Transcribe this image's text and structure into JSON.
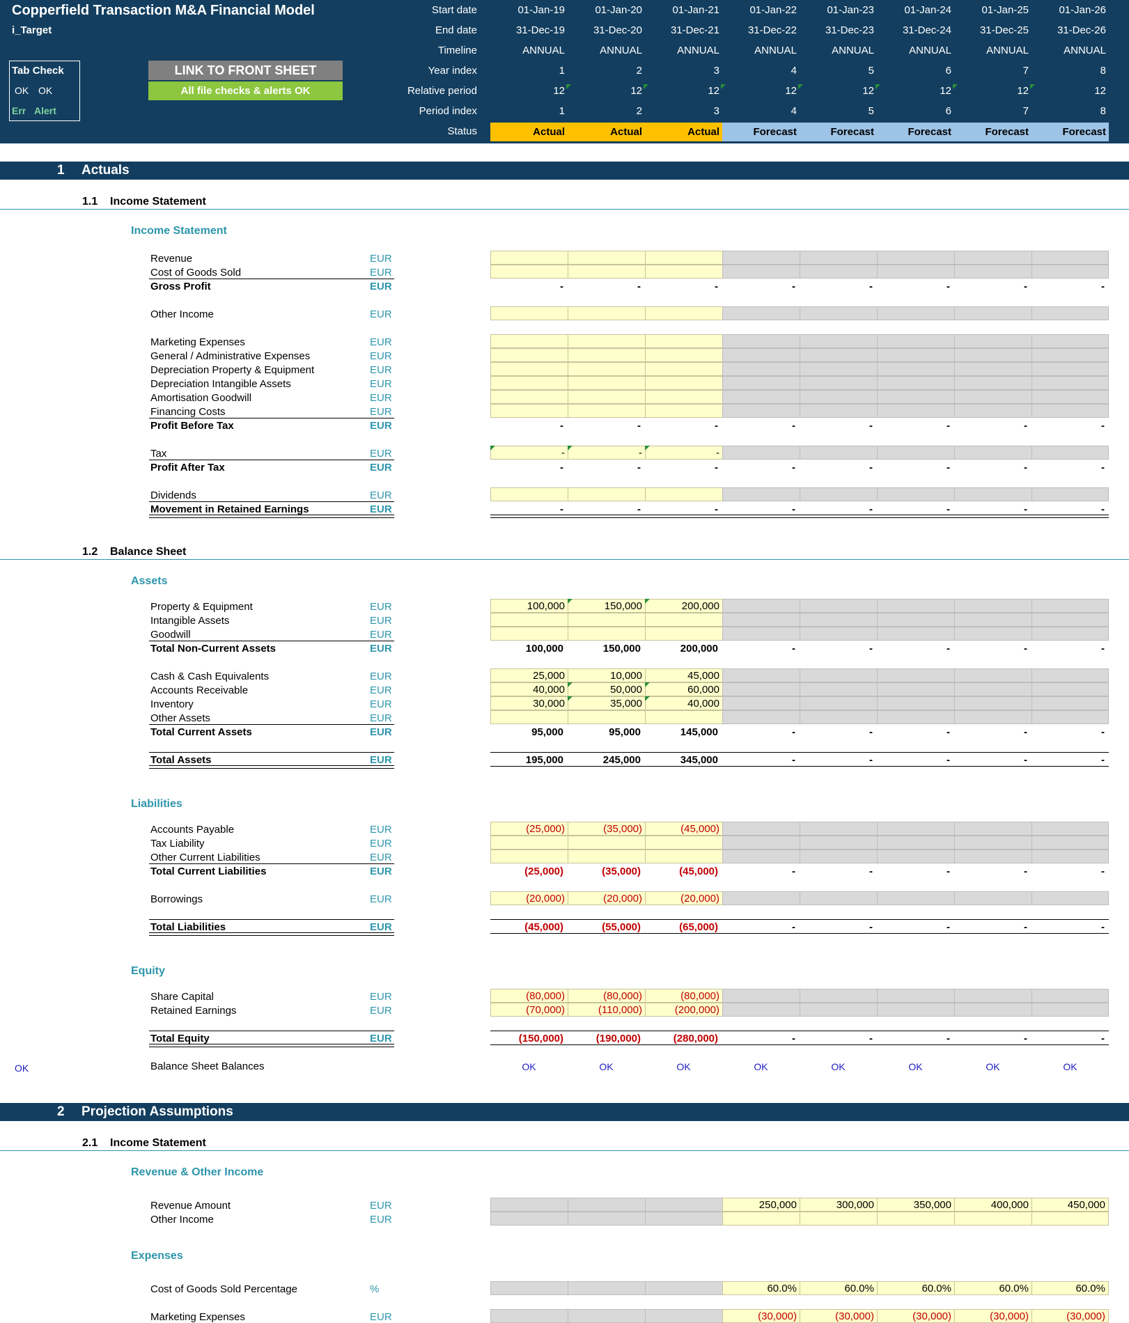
{
  "header": {
    "title": "Copperfield Transaction M&A Financial Model",
    "sheet_name": "i_Target",
    "tab_check": {
      "title": "Tab Check",
      "ok1": "OK",
      "ok2": "OK",
      "err": "Err",
      "alert": "Alert"
    },
    "link_button": "LINK TO FRONT SHEET",
    "checks_banner": "All file checks & alerts OK",
    "row_labels": [
      "Start date",
      "End date",
      "Timeline",
      "Year index",
      "Relative period",
      "Period index",
      "Status"
    ],
    "start_dates": [
      "01-Jan-19",
      "01-Jan-20",
      "01-Jan-21",
      "01-Jan-22",
      "01-Jan-23",
      "01-Jan-24",
      "01-Jan-25",
      "01-Jan-26"
    ],
    "end_dates": [
      "31-Dec-19",
      "31-Dec-20",
      "31-Dec-21",
      "31-Dec-22",
      "31-Dec-23",
      "31-Dec-24",
      "31-Dec-25",
      "31-Dec-26"
    ],
    "timeline": [
      "ANNUAL",
      "ANNUAL",
      "ANNUAL",
      "ANNUAL",
      "ANNUAL",
      "ANNUAL",
      "ANNUAL",
      "ANNUAL"
    ],
    "year_index": [
      "1",
      "2",
      "3",
      "4",
      "5",
      "6",
      "7",
      "8"
    ],
    "relative_period": [
      "12",
      "12",
      "12",
      "12",
      "12",
      "12",
      "12",
      "12"
    ],
    "period_index": [
      "1",
      "2",
      "3",
      "4",
      "5",
      "6",
      "7",
      "8"
    ],
    "status": [
      "Actual",
      "Actual",
      "Actual",
      "Forecast",
      "Forecast",
      "Forecast",
      "Forecast",
      "Forecast"
    ]
  },
  "colors": {
    "header_bg": "#133e5f",
    "actual": "#ffc000",
    "forecast": "#9dc3e6",
    "input": "#ffffcc",
    "disabled": "#d9d9d9",
    "teal": "#2e96ac",
    "ok_green": "#92d050",
    "link_grey": "#808080"
  },
  "sections": {
    "s1": {
      "num": "1",
      "title": "Actuals"
    },
    "s11": {
      "num": "1.1",
      "title": "Income Statement"
    },
    "s11_sub": "Income Statement",
    "s12": {
      "num": "1.2",
      "title": "Balance Sheet"
    },
    "assets": "Assets",
    "liabilities": "Liabilities",
    "equity": "Equity",
    "s2": {
      "num": "2",
      "title": "Projection Assumptions"
    },
    "s21": {
      "num": "2.1",
      "title": "Income Statement"
    },
    "rev_other": "Revenue & Other Income",
    "expenses": "Expenses"
  },
  "rows": [
    {
      "label": "Revenue",
      "unit": "EUR",
      "vals": [
        "",
        "",
        "",
        "",
        "",
        "",
        "",
        ""
      ]
    },
    {
      "label": "Cost of Goods Sold",
      "unit": "EUR",
      "vals": [
        "",
        "",
        "",
        "",
        "",
        "",
        "",
        ""
      ]
    },
    {
      "label": "Gross Profit",
      "unit": "EUR",
      "vals": [
        "-",
        "-",
        "-",
        "-",
        "-",
        "-",
        "-",
        "-"
      ]
    },
    {
      "label": "Other Income",
      "unit": "EUR",
      "vals": [
        "",
        "",
        "",
        "",
        "",
        "",
        "",
        ""
      ]
    },
    {
      "label": "Marketing Expenses",
      "unit": "EUR",
      "vals": [
        "",
        "",
        "",
        "",
        "",
        "",
        "",
        ""
      ]
    },
    {
      "label": "General / Administrative Expenses",
      "unit": "EUR",
      "vals": [
        "",
        "",
        "",
        "",
        "",
        "",
        "",
        ""
      ]
    },
    {
      "label": "Depreciation Property & Equipment",
      "unit": "EUR",
      "vals": [
        "",
        "",
        "",
        "",
        "",
        "",
        "",
        ""
      ]
    },
    {
      "label": "Depreciation Intangible Assets",
      "unit": "EUR",
      "vals": [
        "",
        "",
        "",
        "",
        "",
        "",
        "",
        ""
      ]
    },
    {
      "label": "Amortisation Goodwill",
      "unit": "EUR",
      "vals": [
        "",
        "",
        "",
        "",
        "",
        "",
        "",
        ""
      ]
    },
    {
      "label": "Financing Costs",
      "unit": "EUR",
      "vals": [
        "",
        "",
        "",
        "",
        "",
        "",
        "",
        ""
      ]
    },
    {
      "label": "Profit Before Tax",
      "unit": "EUR",
      "vals": [
        "-",
        "-",
        "-",
        "-",
        "-",
        "-",
        "-",
        "-"
      ]
    },
    {
      "label": "Tax",
      "unit": "EUR",
      "vals": [
        "-",
        "-",
        "-",
        "",
        "",
        "",
        "",
        ""
      ]
    },
    {
      "label": "Profit After Tax",
      "unit": "EUR",
      "vals": [
        "-",
        "-",
        "-",
        "-",
        "-",
        "-",
        "-",
        "-"
      ]
    },
    {
      "label": "Dividends",
      "unit": "EUR",
      "vals": [
        "",
        "",
        "",
        "",
        "",
        "",
        "",
        ""
      ]
    },
    {
      "label": "Movement in Retained Earnings",
      "unit": "EUR",
      "vals": [
        "-",
        "-",
        "-",
        "-",
        "-",
        "-",
        "-",
        "-"
      ]
    },
    {
      "label": "Property & Equipment",
      "unit": "EUR",
      "vals": [
        "100,000",
        "150,000",
        "200,000",
        "",
        "",
        "",
        "",
        ""
      ]
    },
    {
      "label": "Intangible Assets",
      "unit": "EUR",
      "vals": [
        "",
        "",
        "",
        "",
        "",
        "",
        "",
        ""
      ]
    },
    {
      "label": "Goodwill",
      "unit": "EUR",
      "vals": [
        "",
        "",
        "",
        "",
        "",
        "",
        "",
        ""
      ]
    },
    {
      "label": "Total Non-Current Assets",
      "unit": "EUR",
      "vals": [
        "100,000",
        "150,000",
        "200,000",
        "-",
        "-",
        "-",
        "-",
        "-"
      ]
    },
    {
      "label": "Cash & Cash Equivalents",
      "unit": "EUR",
      "vals": [
        "25,000",
        "10,000",
        "45,000",
        "",
        "",
        "",
        "",
        ""
      ]
    },
    {
      "label": "Accounts Receivable",
      "unit": "EUR",
      "vals": [
        "40,000",
        "50,000",
        "60,000",
        "",
        "",
        "",
        "",
        ""
      ]
    },
    {
      "label": "Inventory",
      "unit": "EUR",
      "vals": [
        "30,000",
        "35,000",
        "40,000",
        "",
        "",
        "",
        "",
        ""
      ]
    },
    {
      "label": "Other Assets",
      "unit": "EUR",
      "vals": [
        "",
        "",
        "",
        "",
        "",
        "",
        "",
        ""
      ]
    },
    {
      "label": "Total Current Assets",
      "unit": "EUR",
      "vals": [
        "95,000",
        "95,000",
        "145,000",
        "-",
        "-",
        "-",
        "-",
        "-"
      ]
    },
    {
      "label": "Total Assets",
      "unit": "EUR",
      "vals": [
        "195,000",
        "245,000",
        "345,000",
        "-",
        "-",
        "-",
        "-",
        "-"
      ]
    },
    {
      "label": "Accounts Payable",
      "unit": "EUR",
      "vals": [
        "(25,000)",
        "(35,000)",
        "(45,000)",
        "",
        "",
        "",
        "",
        ""
      ]
    },
    {
      "label": "Tax Liability",
      "unit": "EUR",
      "vals": [
        "",
        "",
        "",
        "",
        "",
        "",
        "",
        ""
      ]
    },
    {
      "label": "Other Current Liabilities",
      "unit": "EUR",
      "vals": [
        "",
        "",
        "",
        "",
        "",
        "",
        "",
        ""
      ]
    },
    {
      "label": "Total Current Liabilities",
      "unit": "EUR",
      "vals": [
        "(25,000)",
        "(35,000)",
        "(45,000)",
        "-",
        "-",
        "-",
        "-",
        "-"
      ]
    },
    {
      "label": "Borrowings",
      "unit": "EUR",
      "vals": [
        "(20,000)",
        "(20,000)",
        "(20,000)",
        "",
        "",
        "",
        "",
        ""
      ]
    },
    {
      "label": "Total Liabilities",
      "unit": "EUR",
      "vals": [
        "(45,000)",
        "(55,000)",
        "(65,000)",
        "-",
        "-",
        "-",
        "-",
        "-"
      ]
    },
    {
      "label": "Share Capital",
      "unit": "EUR",
      "vals": [
        "(80,000)",
        "(80,000)",
        "(80,000)",
        "",
        "",
        "",
        "",
        ""
      ]
    },
    {
      "label": "Retained Earnings",
      "unit": "EUR",
      "vals": [
        "(70,000)",
        "(110,000)",
        "(200,000)",
        "",
        "",
        "",
        "",
        ""
      ]
    },
    {
      "label": "Total Equity",
      "unit": "EUR",
      "vals": [
        "(150,000)",
        "(190,000)",
        "(280,000)",
        "-",
        "-",
        "-",
        "-",
        "-"
      ]
    },
    {
      "label": "Balance Sheet Balances",
      "unit": "",
      "vals": [
        "OK",
        "OK",
        "OK",
        "OK",
        "OK",
        "OK",
        "OK",
        "OK"
      ]
    },
    {
      "label": "Revenue Amount",
      "unit": "EUR",
      "vals": [
        "",
        "",
        "",
        "250,000",
        "300,000",
        "350,000",
        "400,000",
        "450,000"
      ]
    },
    {
      "label": "Other Income",
      "unit": "EUR",
      "vals": [
        "",
        "",
        "",
        "",
        "",
        "",
        "",
        ""
      ]
    },
    {
      "label": "Cost of Goods Sold Percentage",
      "unit": "%",
      "vals": [
        "",
        "",
        "",
        "60.0%",
        "60.0%",
        "60.0%",
        "60.0%",
        "60.0%"
      ]
    },
    {
      "label": "Marketing Expenses",
      "unit": "EUR",
      "vals": [
        "",
        "",
        "",
        "(30,000)",
        "(30,000)",
        "(30,000)",
        "(30,000)",
        "(30,000)"
      ]
    }
  ],
  "bs_check": "OK"
}
